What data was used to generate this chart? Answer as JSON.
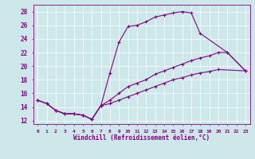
{
  "xlabel": "Windchill (Refroidissement éolien,°C)",
  "bg_color": "#cce8e8",
  "line_color": "#880088",
  "xlim": [
    -0.5,
    23.5
  ],
  "ylim": [
    11.5,
    29.0
  ],
  "xticks": [
    0,
    1,
    2,
    3,
    4,
    5,
    6,
    7,
    8,
    9,
    10,
    11,
    12,
    13,
    14,
    15,
    16,
    17,
    18,
    19,
    20,
    21,
    22,
    23
  ],
  "yticks": [
    12,
    14,
    16,
    18,
    20,
    22,
    24,
    26,
    28
  ],
  "line1_x": [
    0,
    1,
    2,
    3,
    4,
    5,
    6,
    7,
    8,
    9,
    10,
    11,
    12,
    13,
    14,
    15,
    16,
    17,
    18,
    21,
    23
  ],
  "line1_y": [
    15.0,
    14.5,
    13.5,
    13.0,
    13.0,
    12.8,
    12.2,
    14.2,
    19.0,
    23.5,
    25.8,
    26.0,
    26.5,
    27.2,
    27.5,
    27.8,
    28.0,
    27.8,
    24.8,
    22.0,
    19.3
  ],
  "line2_x": [
    0,
    1,
    2,
    3,
    4,
    5,
    6,
    7,
    8,
    9,
    10,
    11,
    12,
    13,
    14,
    15,
    16,
    17,
    18,
    19,
    20,
    21,
    23
  ],
  "line2_y": [
    15.0,
    14.5,
    13.5,
    13.0,
    13.0,
    12.8,
    12.2,
    14.2,
    15.0,
    16.0,
    17.0,
    17.5,
    18.0,
    18.8,
    19.3,
    19.8,
    20.3,
    20.8,
    21.2,
    21.5,
    22.0,
    22.0,
    19.3
  ],
  "line3_x": [
    0,
    1,
    2,
    3,
    4,
    5,
    6,
    7,
    8,
    9,
    10,
    11,
    12,
    13,
    14,
    15,
    16,
    17,
    18,
    19,
    20,
    23
  ],
  "line3_y": [
    15.0,
    14.5,
    13.5,
    13.0,
    13.0,
    12.8,
    12.2,
    14.2,
    14.5,
    15.0,
    15.5,
    16.0,
    16.5,
    17.0,
    17.5,
    18.0,
    18.3,
    18.7,
    19.0,
    19.2,
    19.5,
    19.3
  ]
}
